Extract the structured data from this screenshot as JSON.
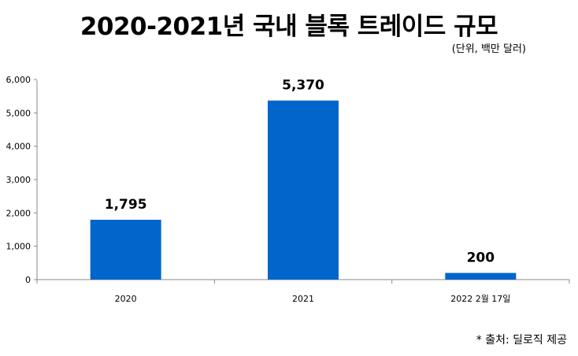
{
  "title": "2020-2021년 국내 블록 트레이드 규모",
  "unit_note": "(단위, 백만 달러)",
  "source_note": "* 출처: 딜로직 제공",
  "colors": {
    "bar": "#0066CC",
    "axis": "#888888"
  },
  "chart_data": {
    "type": "bar",
    "categories": [
      "2020",
      "2021",
      "2022 2월 17일"
    ],
    "values": [
      1795,
      5370,
      200
    ],
    "data_labels": [
      "1,795",
      "5,370",
      "200"
    ],
    "y_ticks": [
      "0",
      "1,000",
      "2,000",
      "3,000",
      "4,000",
      "5,000",
      "6,000"
    ],
    "ylim": [
      0,
      6000
    ],
    "grid": false,
    "legend": "none"
  }
}
